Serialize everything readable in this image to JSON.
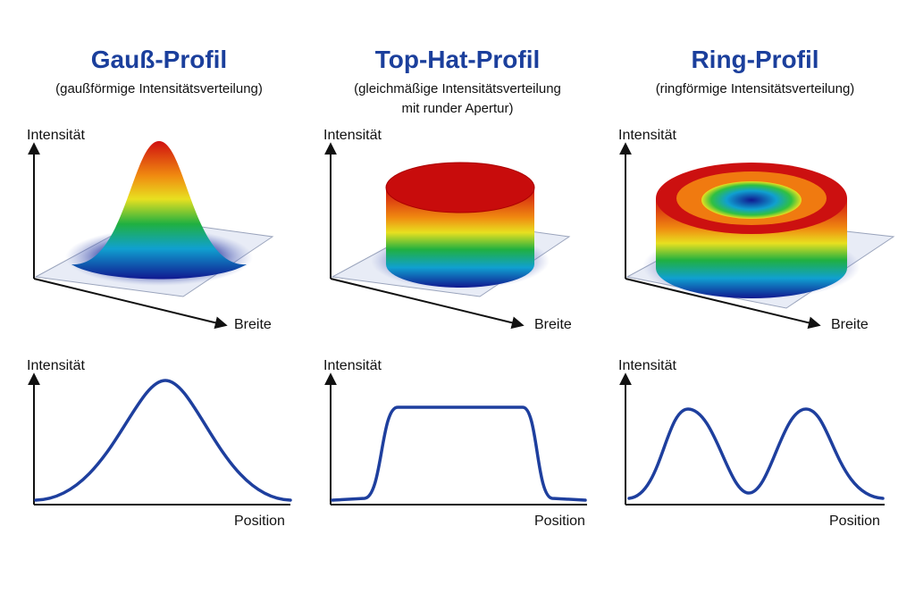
{
  "panels": [
    {
      "title": "Gauß-Profil",
      "subtitle_lines": [
        "(gaußförmige Intensitätsverteilung)"
      ],
      "plot3d": {
        "y_label": "Intensität",
        "x_label": "Breite"
      },
      "plot2d": {
        "y_label": "Intensität",
        "x_label": "Position"
      }
    },
    {
      "title": "Top-Hat-Profil",
      "subtitle_lines": [
        "(gleichmäßige Intensitätsverteilung",
        "mit runder Apertur)"
      ],
      "plot3d": {
        "y_label": "Intensität",
        "x_label": "Breite"
      },
      "plot2d": {
        "y_label": "Intensität",
        "x_label": "Position"
      }
    },
    {
      "title": "Ring-Profil",
      "subtitle_lines": [
        "(ringförmige Intensitätsverteilung)"
      ],
      "plot3d": {
        "y_label": "Intensität",
        "x_label": "Breite"
      },
      "plot2d": {
        "y_label": "Intensität",
        "x_label": "Position"
      }
    }
  ]
}
